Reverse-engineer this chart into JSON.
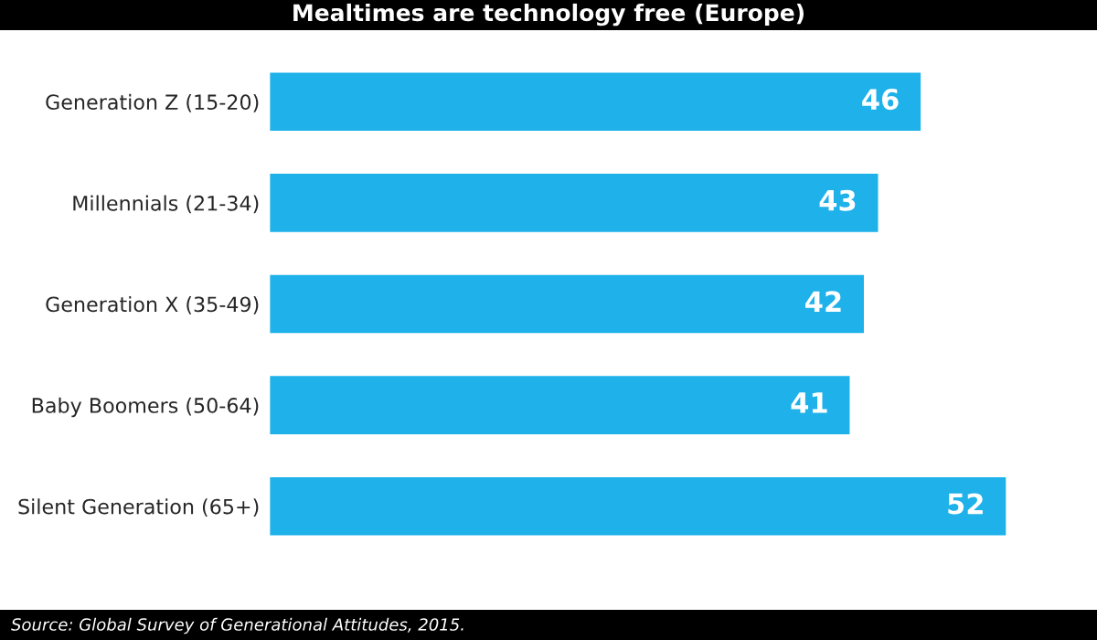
{
  "chart_data": {
    "type": "bar",
    "orientation": "horizontal",
    "title": "Mealtimes are technology free (Europe)",
    "categories": [
      "Generation Z (15-20)",
      "Millennials (21-34)",
      "Generation X (35-49)",
      "Baby Boomers (50-64)",
      "Silent Generation (65+)"
    ],
    "values": [
      46,
      43,
      42,
      41,
      52
    ],
    "color": "#1eb1ea",
    "data_labels": true,
    "grid": false,
    "annotations": [
      "Source: Global Survey of Generational Attitudes, 2015."
    ]
  }
}
